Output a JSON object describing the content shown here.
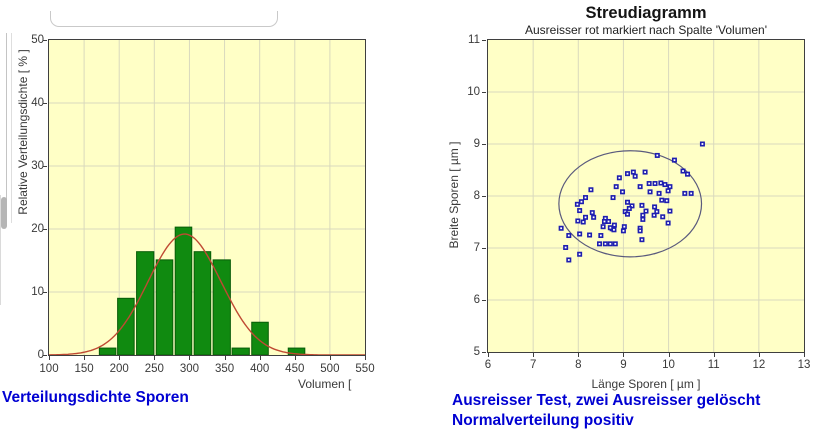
{
  "page_background": "#ffffff",
  "accent_colors": {
    "caption_blue": "#0000d2",
    "plot_background_yellow": "#ffffc6"
  },
  "chart_data": [
    {
      "type": "bar",
      "caption": "Verteilungsdichte Sporen",
      "xlabel": "Volumen [",
      "ylabel": "Relative Verteilungsdichte [ % ]",
      "xlim": [
        100,
        550
      ],
      "ylim": [
        0,
        50
      ],
      "xticks": [
        100,
        150,
        200,
        250,
        300,
        350,
        400,
        450,
        500,
        550
      ],
      "yticks": [
        0,
        10,
        20,
        30,
        40,
        50
      ],
      "grid": true,
      "legend": "none",
      "plot_bg": "#ffffc6",
      "grid_color": "#d9d9bd",
      "bar_color": "#108a10",
      "bar_edge_color": "#085c08",
      "curve_color": "#bf4a33",
      "bars": [
        {
          "x0": 171,
          "x1": 196,
          "value": 1.1
        },
        {
          "x0": 197,
          "x1": 222,
          "value": 9.0
        },
        {
          "x0": 224,
          "x1": 250,
          "value": 16.4
        },
        {
          "x0": 252,
          "x1": 277,
          "value": 15.1
        },
        {
          "x0": 279,
          "x1": 304,
          "value": 20.3
        },
        {
          "x0": 306,
          "x1": 331,
          "value": 16.4
        },
        {
          "x0": 333,
          "x1": 359,
          "value": 15.1
        },
        {
          "x0": 360,
          "x1": 386,
          "value": 1.1
        },
        {
          "x0": 388,
          "x1": 413,
          "value": 5.2
        },
        {
          "x0": 440,
          "x1": 465,
          "value": 1.1
        }
      ],
      "fit_curve": {
        "shape": "normal",
        "mean": 293,
        "sigma": 52,
        "peak": 19.2
      }
    },
    {
      "type": "scatter",
      "title": "Streudiagramm",
      "subtitle": "Ausreisser rot markiert nach Spalte 'Volumen'",
      "caption_line1": "Ausreisser Test, zwei Ausreisser gelöscht",
      "caption_line2": "Normalverteilung positiv",
      "xlabel": "Länge Sporen [ µm ]",
      "ylabel": "Breite Sporen [ µm ]",
      "xlim": [
        6,
        13
      ],
      "ylim": [
        5,
        11
      ],
      "xticks": [
        6,
        7,
        8,
        9,
        10,
        11,
        12,
        13
      ],
      "yticks": [
        5,
        6,
        7,
        8,
        9,
        10,
        11
      ],
      "grid": true,
      "legend": "none",
      "plot_bg": "#ffffc6",
      "grid_color": "#d9d9bd",
      "marker_color": "#1e1eb0",
      "marker_center_color": "#ffffff",
      "ellipse_color": "#5a5a7d",
      "ellipse": {
        "cx": 9.15,
        "cy": 7.85,
        "rx": 1.58,
        "ry": 1.02
      },
      "points": [
        [
          10.75,
          9.0
        ],
        [
          9.75,
          8.78
        ],
        [
          10.13,
          8.69
        ],
        [
          10.32,
          8.48
        ],
        [
          10.42,
          8.42
        ],
        [
          9.22,
          8.46
        ],
        [
          9.48,
          8.46
        ],
        [
          9.09,
          8.43
        ],
        [
          9.26,
          8.38
        ],
        [
          8.91,
          8.35
        ],
        [
          9.57,
          8.24
        ],
        [
          9.7,
          8.24
        ],
        [
          9.83,
          8.25
        ],
        [
          9.92,
          8.22
        ],
        [
          10.03,
          8.18
        ],
        [
          9.37,
          8.18
        ],
        [
          8.84,
          8.18
        ],
        [
          8.28,
          8.12
        ],
        [
          8.98,
          8.08
        ],
        [
          9.59,
          8.08
        ],
        [
          10.36,
          8.05
        ],
        [
          10.5,
          8.05
        ],
        [
          9.79,
          8.05
        ],
        [
          9.99,
          8.1
        ],
        [
          8.16,
          7.97
        ],
        [
          8.77,
          7.97
        ],
        [
          9.96,
          7.91
        ],
        [
          9.85,
          7.92
        ],
        [
          7.98,
          7.84
        ],
        [
          8.07,
          7.89
        ],
        [
          9.09,
          7.88
        ],
        [
          9.19,
          7.81
        ],
        [
          9.41,
          7.82
        ],
        [
          9.69,
          7.79
        ],
        [
          9.13,
          7.76
        ],
        [
          8.03,
          7.72
        ],
        [
          8.31,
          7.68
        ],
        [
          9.04,
          7.7
        ],
        [
          9.09,
          7.65
        ],
        [
          9.43,
          7.63
        ],
        [
          9.5,
          7.71
        ],
        [
          9.68,
          7.63
        ],
        [
          9.74,
          7.7
        ],
        [
          9.87,
          7.6
        ],
        [
          10.03,
          7.71
        ],
        [
          8.16,
          7.59
        ],
        [
          8.34,
          7.59
        ],
        [
          8.6,
          7.57
        ],
        [
          8.67,
          7.51
        ],
        [
          8.58,
          7.51
        ],
        [
          8.55,
          7.41
        ],
        [
          8.75,
          7.37
        ],
        [
          8.79,
          7.35
        ],
        [
          8.71,
          7.39
        ],
        [
          8.8,
          7.44
        ],
        [
          9.43,
          7.55
        ],
        [
          9.99,
          7.48
        ],
        [
          7.99,
          7.52
        ],
        [
          8.11,
          7.5
        ],
        [
          7.62,
          7.38
        ],
        [
          7.79,
          7.24
        ],
        [
          8.03,
          7.27
        ],
        [
          8.25,
          7.25
        ],
        [
          8.5,
          7.24
        ],
        [
          9.02,
          7.41
        ],
        [
          9.37,
          7.38
        ],
        [
          9.0,
          7.33
        ],
        [
          9.37,
          7.33
        ],
        [
          8.47,
          7.08
        ],
        [
          8.6,
          7.08
        ],
        [
          8.71,
          7.08
        ],
        [
          8.82,
          7.08
        ],
        [
          7.72,
          7.01
        ],
        [
          9.41,
          7.16
        ],
        [
          8.03,
          6.88
        ],
        [
          7.79,
          6.77
        ]
      ]
    }
  ]
}
